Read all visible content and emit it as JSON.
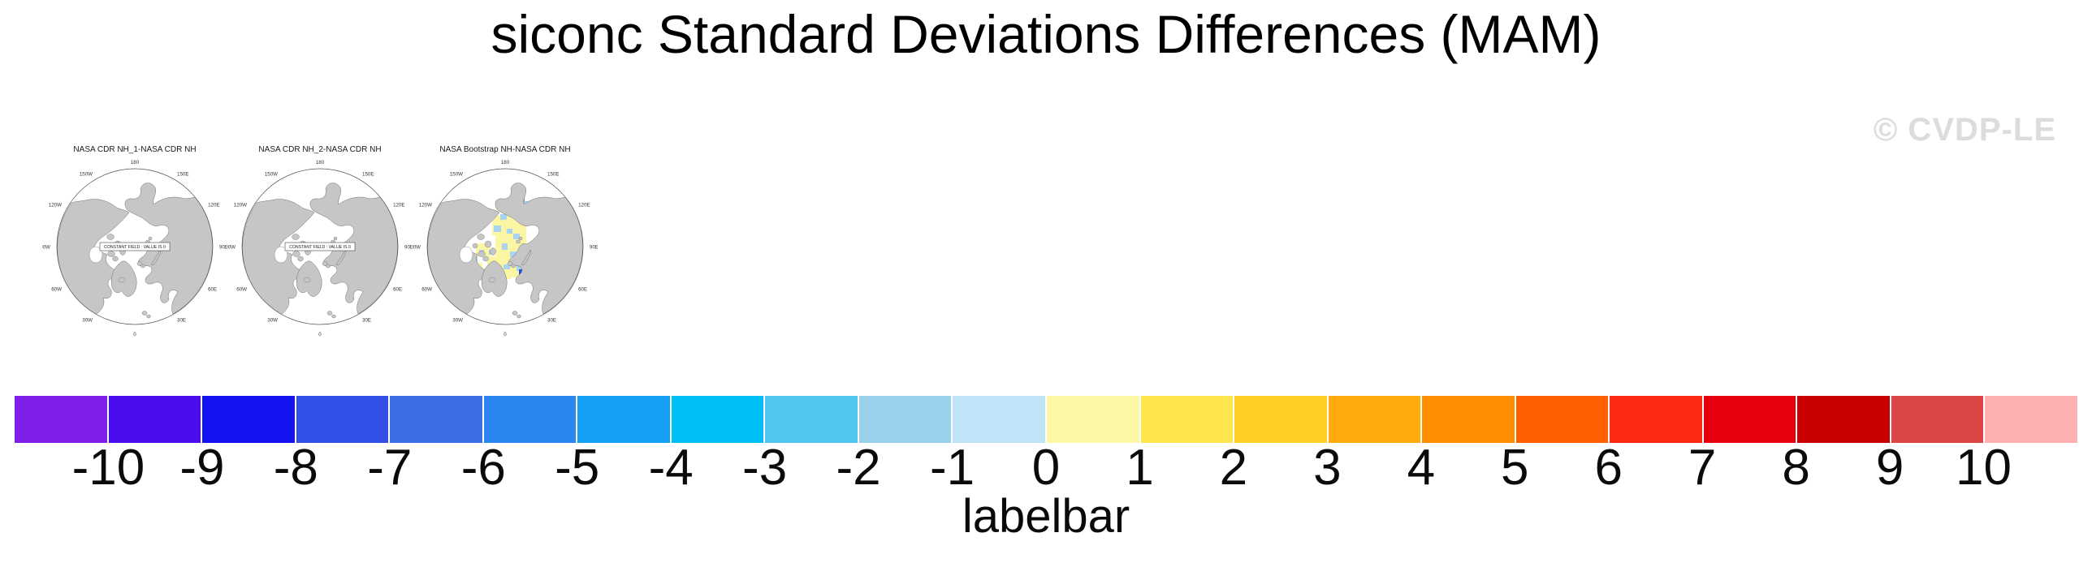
{
  "header": {
    "title": "siconc Standard Deviations Differences (MAM)",
    "watermark": "© CVDP-LE"
  },
  "maps": {
    "lon_labels": [
      "180",
      "150E",
      "120E",
      "90E",
      "60E",
      "30E",
      "0",
      "30W",
      "60W",
      "90W",
      "120W",
      "150W"
    ],
    "land_color": "#c6c6c6",
    "patch_colors": {
      "y": "#FBF6A3",
      "lb": "#A9D3EE",
      "mb": "#53A9E8",
      "db": "#2255DD"
    },
    "panels": [
      {
        "title": "NASA CDR NH_1-NASA CDR NH",
        "center_label": "CONSTANT FIELD : VALUE IS 0",
        "patches": []
      },
      {
        "title": "NASA CDR NH_2-NASA CDR NH",
        "center_label": "CONSTANT FIELD : VALUE IS 0",
        "patches": []
      },
      {
        "title": "NASA Bootstrap NH-NASA CDR NH",
        "center_label": null,
        "patches": [
          [
            88,
            42,
            36,
            12,
            "y"
          ],
          [
            98,
            54,
            30,
            10,
            "y"
          ],
          [
            84,
            62,
            42,
            24,
            "y"
          ],
          [
            88,
            86,
            38,
            26,
            "y"
          ],
          [
            78,
            112,
            30,
            28,
            "y"
          ],
          [
            64,
            96,
            18,
            16,
            "y"
          ],
          [
            56,
            120,
            16,
            22,
            "y"
          ],
          [
            48,
            140,
            14,
            14,
            "y"
          ],
          [
            104,
            116,
            20,
            22,
            "y"
          ],
          [
            118,
            50,
            16,
            10,
            "y"
          ],
          [
            112,
            38,
            8,
            8,
            "lb"
          ],
          [
            120,
            44,
            10,
            8,
            "lb"
          ],
          [
            102,
            48,
            7,
            6,
            "lb"
          ],
          [
            94,
            60,
            8,
            7,
            "lb"
          ],
          [
            86,
            74,
            9,
            8,
            "lb"
          ],
          [
            102,
            78,
            7,
            6,
            "lb"
          ],
          [
            110,
            84,
            8,
            7,
            "lb"
          ],
          [
            96,
            96,
            7,
            8,
            "lb"
          ],
          [
            80,
            104,
            7,
            6,
            "lb"
          ],
          [
            106,
            106,
            8,
            7,
            "lb"
          ],
          [
            68,
            104,
            6,
            6,
            "lb"
          ],
          [
            60,
            112,
            6,
            7,
            "lb"
          ],
          [
            98,
            122,
            8,
            6,
            "lb"
          ],
          [
            114,
            124,
            7,
            6,
            "lb"
          ],
          [
            52,
            146,
            7,
            8,
            "lb"
          ],
          [
            46,
            156,
            6,
            7,
            "lb"
          ],
          [
            86,
            130,
            7,
            6,
            "lb"
          ],
          [
            124,
            56,
            7,
            6,
            "lb"
          ],
          [
            117,
            38,
            7,
            7,
            "mb"
          ],
          [
            117,
            128,
            8,
            7,
            "db"
          ]
        ]
      }
    ]
  },
  "colorbar": {
    "caption": "labelbar",
    "colors": [
      "#7F1FE8",
      "#4A0DF0",
      "#1412F0",
      "#3350E6",
      "#3B6FE3",
      "#2B87F0",
      "#14A0F5",
      "#00BFF7",
      "#52C4F0",
      "#99D1ED",
      "#BFE3F7",
      "#FCF7A3",
      "#FFE64D",
      "#FFCF26",
      "#FFAB0D",
      "#FF8E00",
      "#FF5F00",
      "#FF2814",
      "#E90010",
      "#C90000",
      "#DC4545",
      "#FFB0B0"
    ],
    "labels": [
      "-10",
      "-9",
      "-8",
      "-7",
      "-6",
      "-5",
      "-4",
      "-3",
      "-2",
      "-1",
      "0",
      "1",
      "2",
      "3",
      "4",
      "5",
      "6",
      "7",
      "8",
      "9",
      "10"
    ]
  },
  "chart_data": {
    "type": "heatmap",
    "title": "siconc Standard Deviations Differences (MAM)",
    "projection": "north polar stereographic",
    "panels": [
      {
        "name": "NASA CDR NH_1-NASA CDR NH",
        "values": "constant field, value is 0 everywhere"
      },
      {
        "name": "NASA CDR NH_2-NASA CDR NH",
        "values": "constant field, value is 0 everywhere"
      },
      {
        "name": "NASA Bootstrap NH-NASA CDR NH",
        "values": "differences over Arctic Ocean mostly 0 to 1 (pale yellow) with scattered -1 to 0 and -2 to -1 (light blue) cells and isolated cells near -3 and -7"
      }
    ],
    "lon_ticks": [
      "180",
      "150E",
      "120E",
      "90E",
      "60E",
      "30E",
      "0",
      "30W",
      "60W",
      "90W",
      "120W",
      "150W"
    ],
    "legend": {
      "label": "labelbar",
      "position": "bottom, full width",
      "levels": [
        -10,
        -9,
        -8,
        -7,
        -6,
        -5,
        -4,
        -3,
        -2,
        -1,
        0,
        1,
        2,
        3,
        4,
        5,
        6,
        7,
        8,
        9,
        10
      ],
      "colors": [
        "#7F1FE8",
        "#4A0DF0",
        "#1412F0",
        "#3350E6",
        "#3B6FE3",
        "#2B87F0",
        "#14A0F5",
        "#00BFF7",
        "#52C4F0",
        "#99D1ED",
        "#BFE3F7",
        "#FCF7A3",
        "#FFE64D",
        "#FFCF26",
        "#FFAB0D",
        "#FF8E00",
        "#FF5F00",
        "#FF2814",
        "#E90010",
        "#C90000",
        "#DC4545",
        "#FFB0B0"
      ]
    }
  }
}
